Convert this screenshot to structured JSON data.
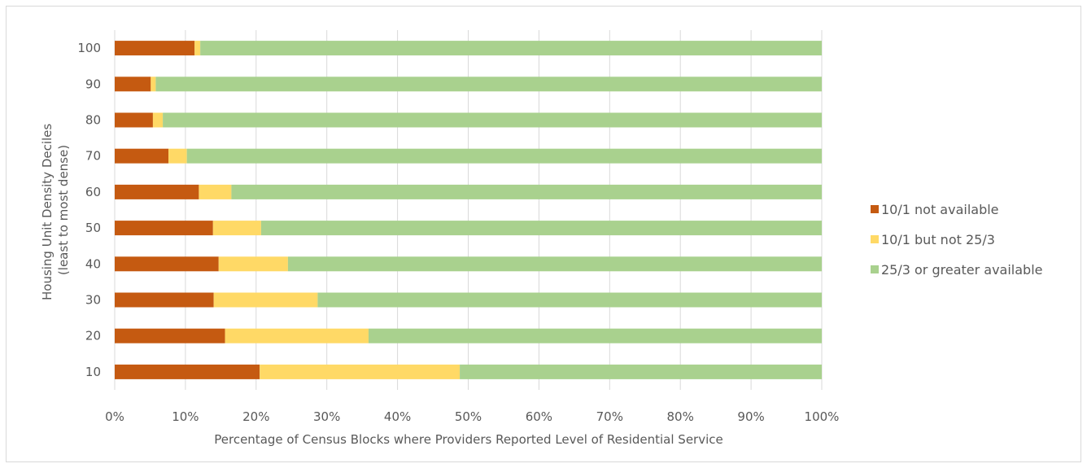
{
  "chart_data": {
    "type": "bar",
    "orientation": "horizontal",
    "stacked": true,
    "categories": [
      "10",
      "20",
      "30",
      "40",
      "50",
      "60",
      "70",
      "80",
      "90",
      "100"
    ],
    "series": [
      {
        "name": "10/1 not available",
        "color": "#c55a11",
        "values": [
          20.5,
          15.6,
          14.0,
          14.7,
          13.9,
          11.9,
          7.6,
          5.4,
          5.1,
          11.3
        ]
      },
      {
        "name": "10/1 but not 25/3",
        "color": "#ffd966",
        "values": [
          28.3,
          20.3,
          14.7,
          9.8,
          6.8,
          4.6,
          2.6,
          1.4,
          0.7,
          0.8
        ]
      },
      {
        "name": "25/3 or greater available",
        "color": "#a9d18e",
        "values": [
          51.2,
          64.1,
          71.3,
          75.5,
          79.3,
          83.5,
          89.8,
          93.2,
          94.2,
          87.9
        ]
      }
    ],
    "x_ticks": [
      "0%",
      "10%",
      "20%",
      "30%",
      "40%",
      "50%",
      "60%",
      "70%",
      "80%",
      "90%",
      "100%"
    ],
    "xlim": [
      0,
      100
    ],
    "xlabel": "Percentage of Census Blocks where Providers Reported Level of Residential Service",
    "ylabel_lines": [
      "Housing Unit Density Deciles",
      "(least to most dense)"
    ],
    "grid": true,
    "legend_position": "right"
  }
}
